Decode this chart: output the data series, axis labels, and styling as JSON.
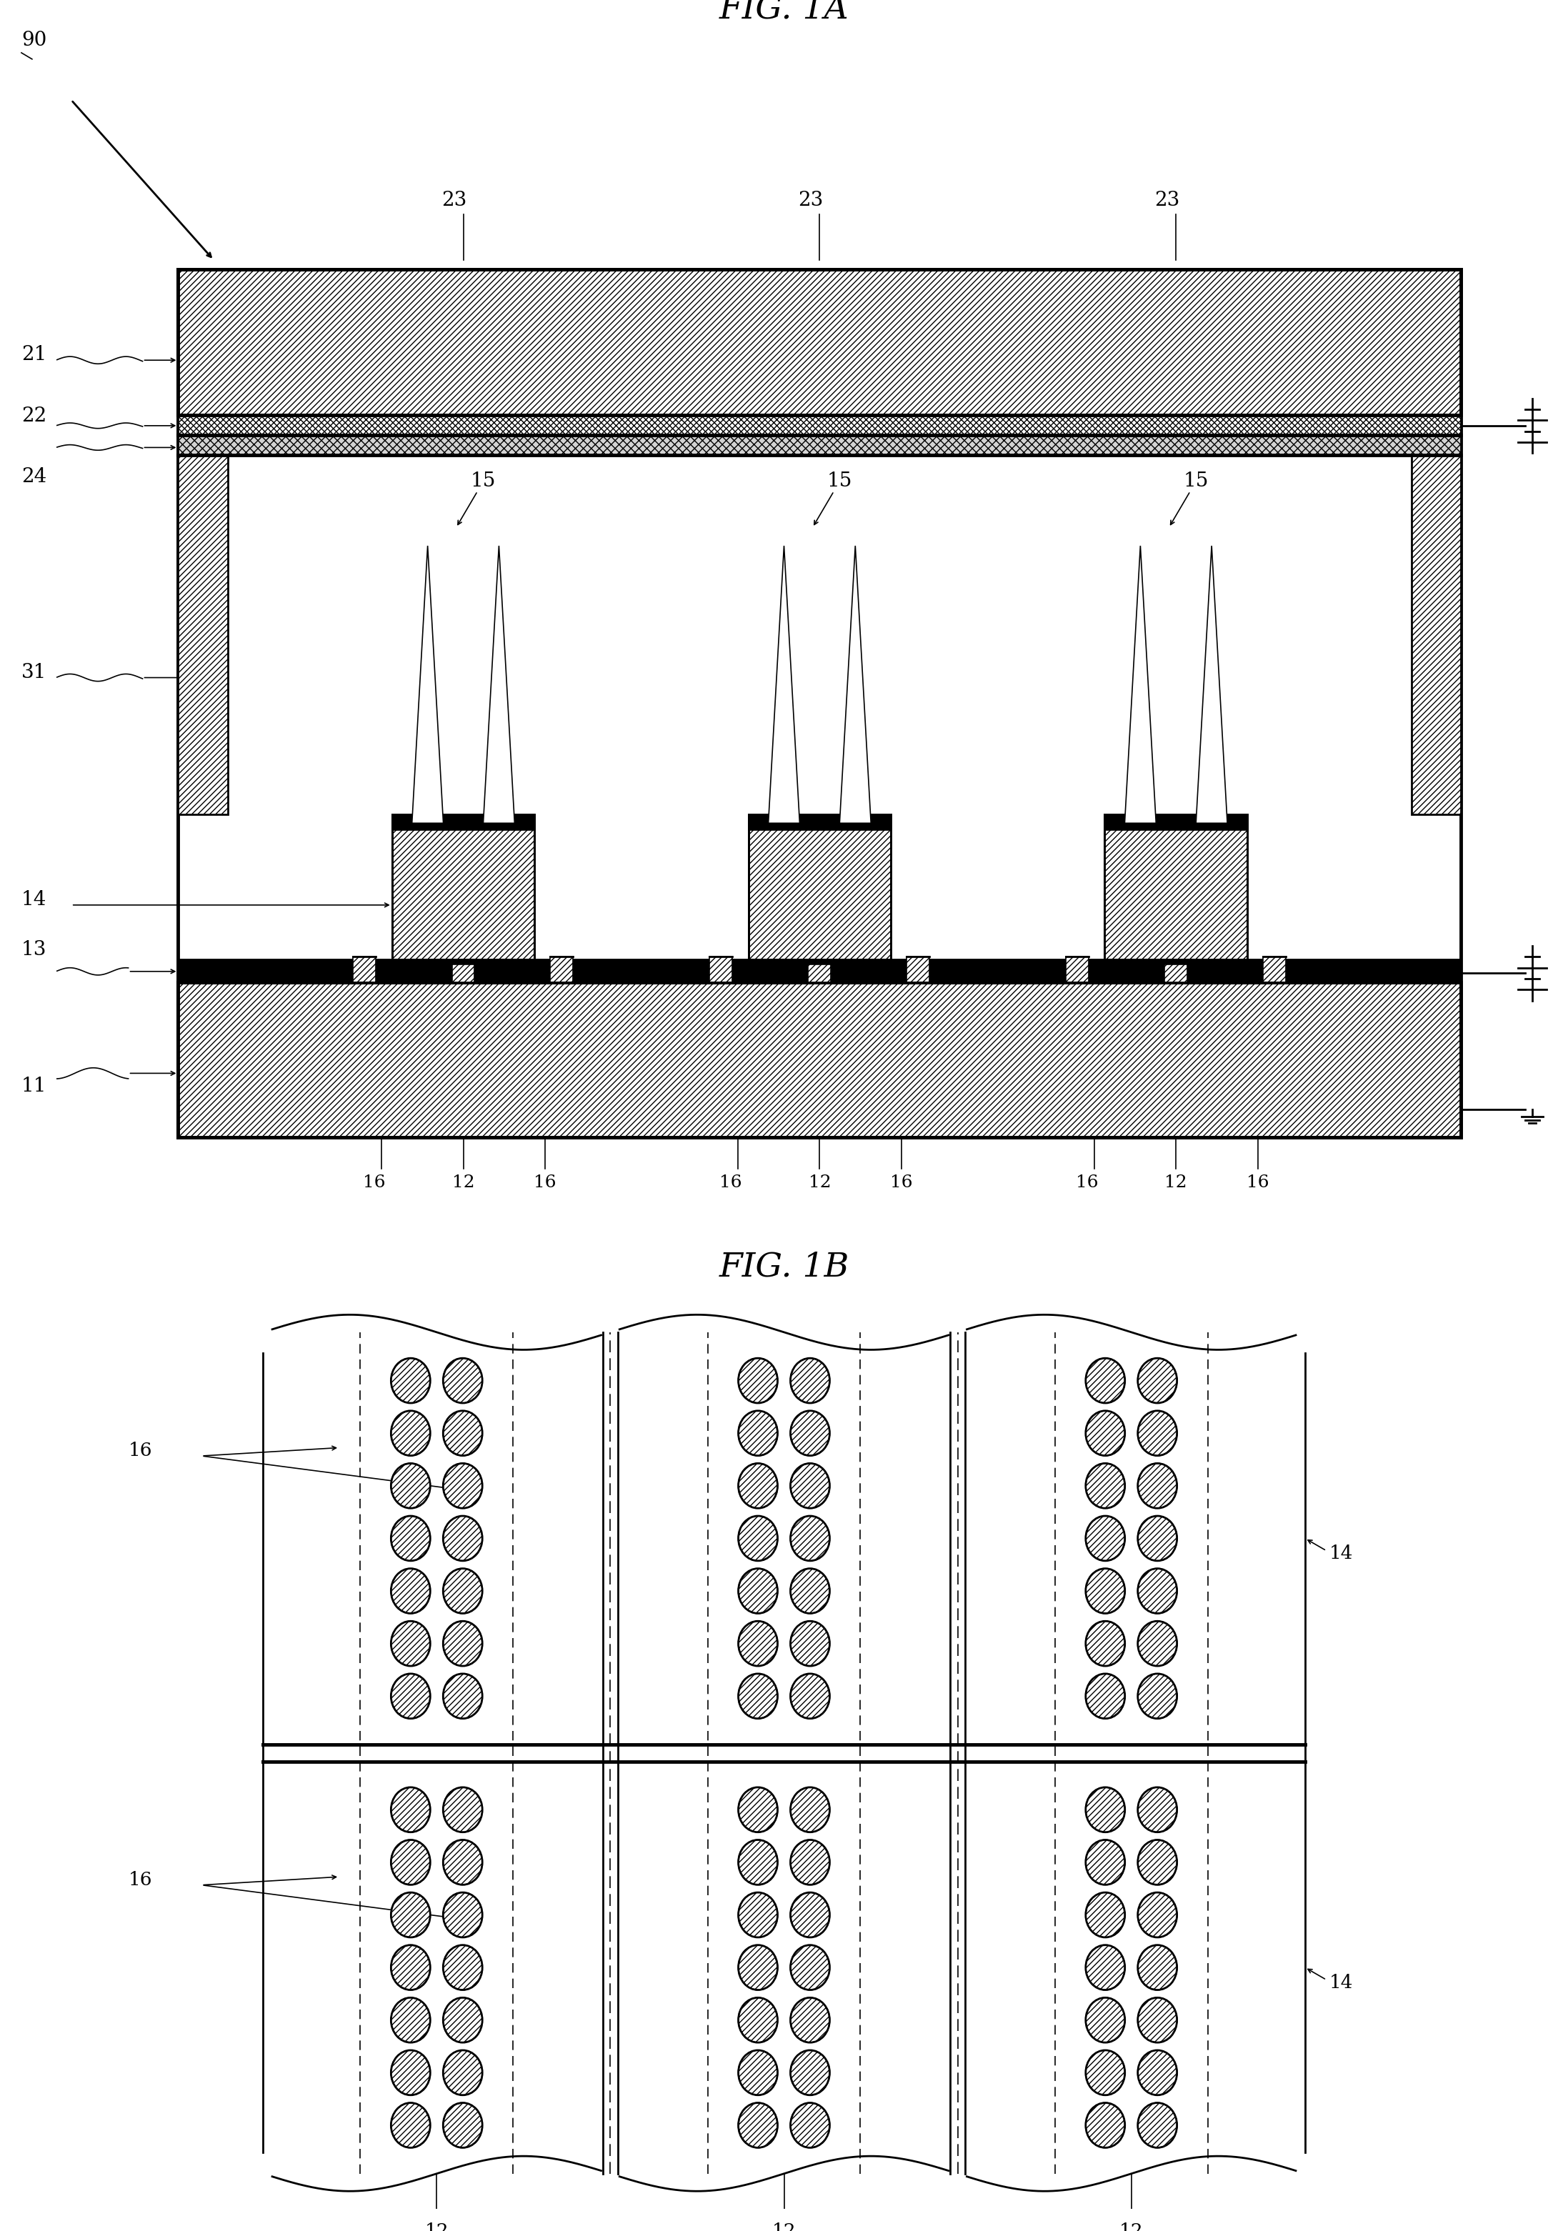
{
  "fig_title_1a": "FIG. 1A",
  "fig_title_1b": "FIG. 1B",
  "bg_color": "#ffffff",
  "label_fontsize": 20,
  "title_fontsize": 34,
  "lw_thin": 1.2,
  "lw_med": 2.0,
  "lw_thick": 3.5
}
